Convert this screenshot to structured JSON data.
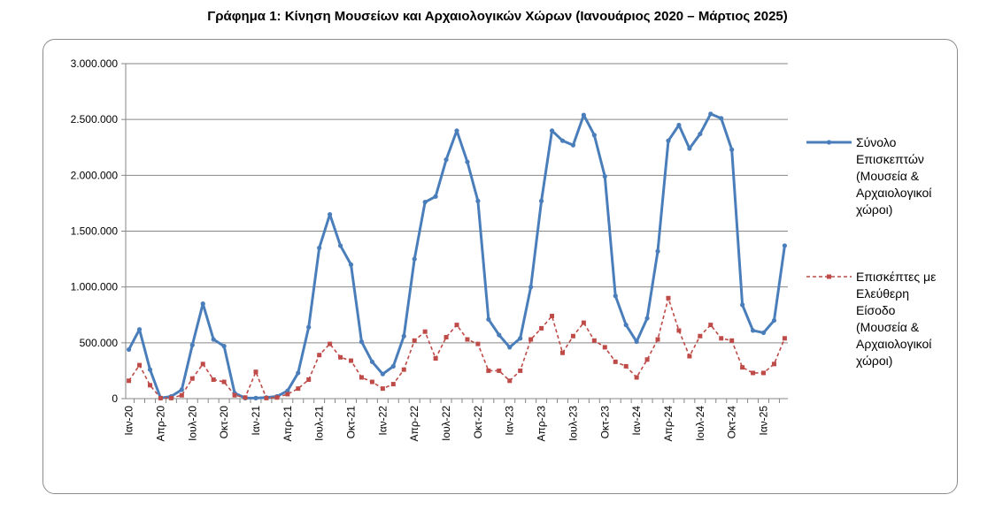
{
  "title": "Γράφημα 1: Κίνηση Μουσείων και Αρχαιολογικών Χώρων (Ιανουάριος 2020 – Μάρτιος 2025)",
  "chart_data": {
    "type": "line",
    "title": "Γράφημα 1: Κίνηση Μουσείων και Αρχαιολογικών Χώρων (Ιανουάριος 2020 – Μάρτιος 2025)",
    "xlabel": "",
    "ylabel": "",
    "ylim": [
      0,
      3000000
    ],
    "y_ticks": [
      0,
      500000,
      1000000,
      1500000,
      2000000,
      2500000,
      3000000
    ],
    "y_tick_labels": [
      "0",
      "500.000",
      "1.000.000",
      "1.500.000",
      "2.000.000",
      "2.500.000",
      "3.000.000"
    ],
    "grid": true,
    "legend_position": "right",
    "x": [
      "2020-01",
      "2020-02",
      "2020-03",
      "2020-04",
      "2020-05",
      "2020-06",
      "2020-07",
      "2020-08",
      "2020-09",
      "2020-10",
      "2020-11",
      "2020-12",
      "2021-01",
      "2021-02",
      "2021-03",
      "2021-04",
      "2021-05",
      "2021-06",
      "2021-07",
      "2021-08",
      "2021-09",
      "2021-10",
      "2021-11",
      "2021-12",
      "2022-01",
      "2022-02",
      "2022-03",
      "2022-04",
      "2022-05",
      "2022-06",
      "2022-07",
      "2022-08",
      "2022-09",
      "2022-10",
      "2022-11",
      "2022-12",
      "2023-01",
      "2023-02",
      "2023-03",
      "2023-04",
      "2023-05",
      "2023-06",
      "2023-07",
      "2023-08",
      "2023-09",
      "2023-10",
      "2023-11",
      "2023-12",
      "2024-01",
      "2024-02",
      "2024-03",
      "2024-04",
      "2024-05",
      "2024-06",
      "2024-07",
      "2024-08",
      "2024-09",
      "2024-10",
      "2024-11",
      "2024-12",
      "2025-01",
      "2025-02",
      "2025-03"
    ],
    "x_tick_labels": [
      {
        "index": 0,
        "label": "Ιαν-20"
      },
      {
        "index": 3,
        "label": "Απρ-20"
      },
      {
        "index": 6,
        "label": "Ιουλ-20"
      },
      {
        "index": 9,
        "label": "Οκτ-20"
      },
      {
        "index": 12,
        "label": "Ιαν-21"
      },
      {
        "index": 15,
        "label": "Απρ-21"
      },
      {
        "index": 18,
        "label": "Ιουλ-21"
      },
      {
        "index": 21,
        "label": "Οκτ-21"
      },
      {
        "index": 24,
        "label": "Ιαν-22"
      },
      {
        "index": 27,
        "label": "Απρ-22"
      },
      {
        "index": 30,
        "label": "Ιουλ-22"
      },
      {
        "index": 33,
        "label": "Οκτ-22"
      },
      {
        "index": 36,
        "label": "Ιαν-23"
      },
      {
        "index": 39,
        "label": "Απρ-23"
      },
      {
        "index": 42,
        "label": "Ιουλ-23"
      },
      {
        "index": 45,
        "label": "Οκτ-23"
      },
      {
        "index": 48,
        "label": "Ιαν-24"
      },
      {
        "index": 51,
        "label": "Απρ-24"
      },
      {
        "index": 54,
        "label": "Ιουλ-24"
      },
      {
        "index": 57,
        "label": "Οκτ-24"
      },
      {
        "index": 60,
        "label": "Ιαν-25"
      }
    ],
    "series": [
      {
        "name": "Σύνολο Επισκεπτών (Μουσεία & Αρχαιολογικοί χώροι)",
        "legend_lines": [
          "Σύνολο",
          "Επισκεπτών",
          "(Μουσεία &",
          "Αρχαιολογικοί",
          "χώροι)"
        ],
        "color": "#4a7ebb",
        "style": "solid",
        "marker": "circle",
        "values": [
          440000,
          620000,
          260000,
          5000,
          20000,
          80000,
          480000,
          850000,
          530000,
          470000,
          50000,
          5000,
          5000,
          10000,
          20000,
          70000,
          230000,
          640000,
          1350000,
          1650000,
          1370000,
          1200000,
          510000,
          330000,
          220000,
          290000,
          560000,
          1250000,
          1760000,
          1810000,
          2140000,
          2400000,
          2120000,
          1770000,
          710000,
          570000,
          460000,
          540000,
          1000000,
          1770000,
          2400000,
          2310000,
          2270000,
          2540000,
          2360000,
          1990000,
          920000,
          660000,
          510000,
          720000,
          1320000,
          2310000,
          2450000,
          2240000,
          2370000,
          2550000,
          2510000,
          2230000,
          840000,
          610000,
          590000,
          700000,
          1370000
        ]
      },
      {
        "name": "Επισκέπτες με Ελεύθερη Είσοδο (Μουσεία & Αρχαιολογικοί χώροι)",
        "legend_lines": [
          "Επισκέπτες με",
          "Ελεύθερη",
          "Είσοδο",
          "(Μουσεία &",
          "Αρχαιολογικοί",
          "χώροι)"
        ],
        "color": "#be4b48",
        "style": "dashed",
        "marker": "square",
        "values": [
          160000,
          300000,
          120000,
          5000,
          5000,
          30000,
          180000,
          310000,
          170000,
          150000,
          30000,
          10000,
          240000,
          5000,
          10000,
          40000,
          90000,
          170000,
          390000,
          490000,
          370000,
          340000,
          190000,
          150000,
          90000,
          130000,
          260000,
          520000,
          600000,
          360000,
          550000,
          660000,
          530000,
          490000,
          250000,
          250000,
          160000,
          250000,
          530000,
          630000,
          740000,
          410000,
          560000,
          680000,
          520000,
          460000,
          330000,
          290000,
          190000,
          350000,
          530000,
          900000,
          610000,
          380000,
          560000,
          660000,
          540000,
          520000,
          280000,
          230000,
          230000,
          310000,
          540000
        ]
      }
    ]
  }
}
